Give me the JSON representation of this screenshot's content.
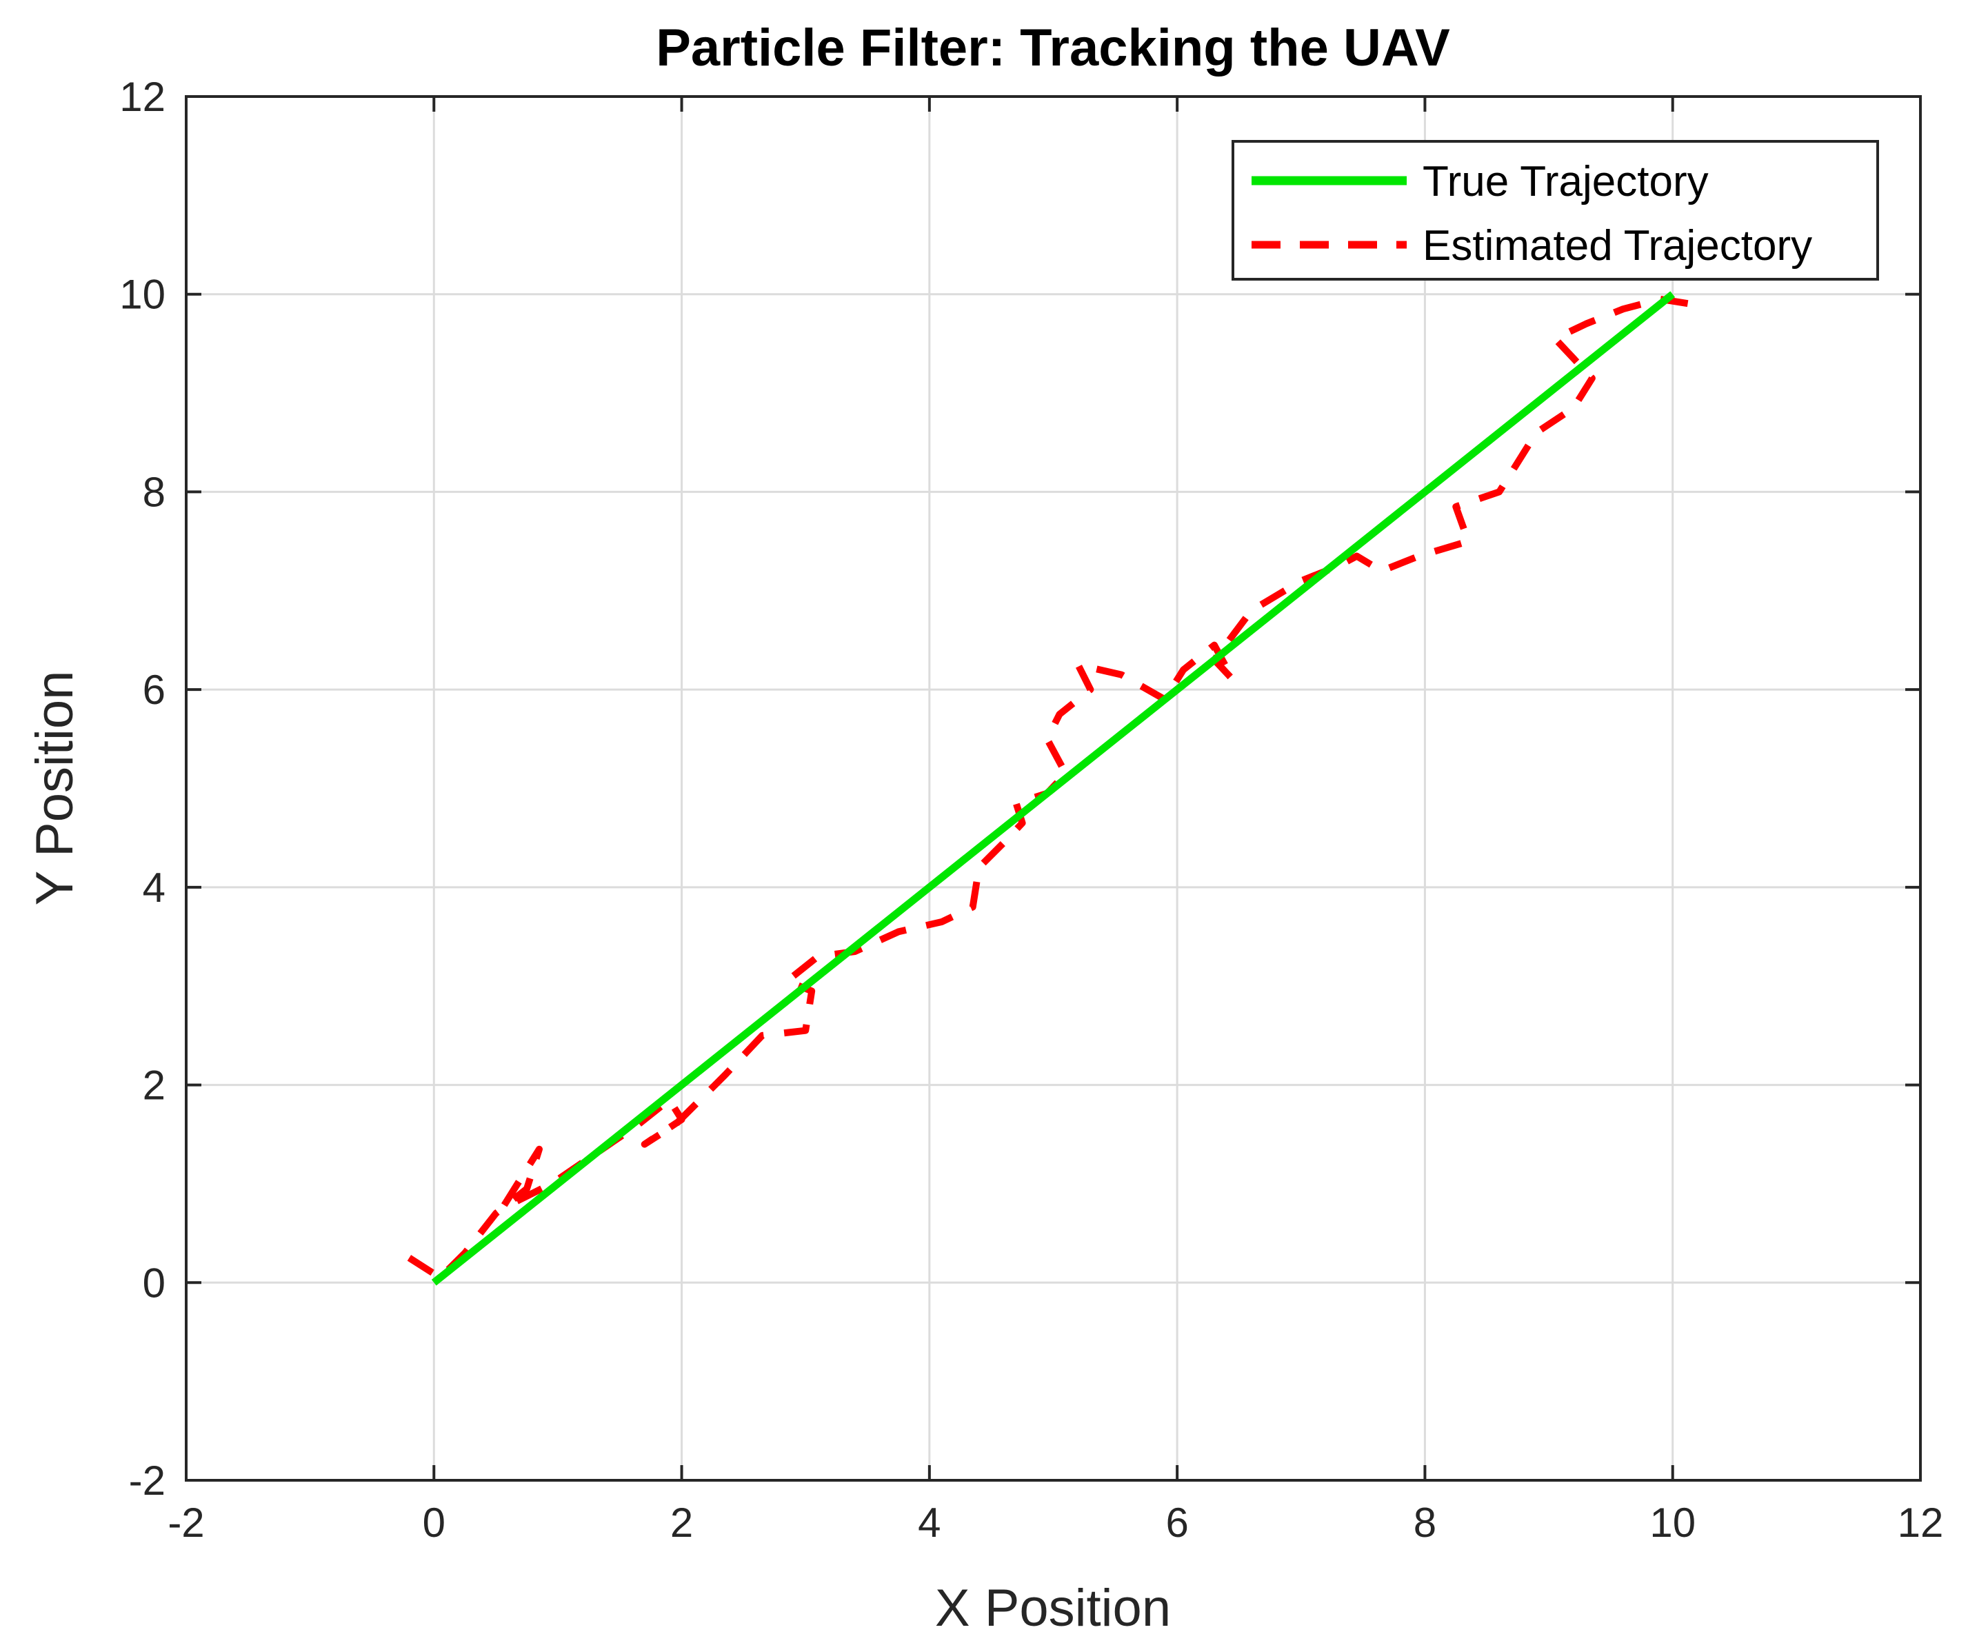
{
  "chart_data": {
    "type": "line",
    "title": "Particle Filter: Tracking the UAV",
    "xlabel": "X Position",
    "ylabel": "Y Position",
    "xlim": [
      -2,
      12
    ],
    "ylim": [
      -2,
      12
    ],
    "xticks": [
      "-2",
      "0",
      "2",
      "4",
      "6",
      "8",
      "10",
      "12"
    ],
    "yticks": [
      "-2",
      "0",
      "2",
      "4",
      "6",
      "8",
      "10",
      "12"
    ],
    "grid": true,
    "legend_position": "top-right",
    "series": [
      {
        "name": "True Trajectory",
        "color": "#00e600",
        "style": "solid",
        "x": [
          0,
          10
        ],
        "y": [
          0,
          10
        ]
      },
      {
        "name": "Estimated Trajectory",
        "color": "#ff0000",
        "style": "dashed",
        "x": [
          -0.2,
          0.05,
          0.25,
          0.5,
          0.75,
          0.85,
          0.55,
          0.95,
          1.3,
          1.65,
          1.9,
          2.0,
          1.7,
          1.95,
          2.35,
          2.65,
          3.0,
          3.05,
          2.85,
          3.1,
          3.4,
          3.75,
          4.1,
          4.35,
          4.4,
          4.6,
          4.75,
          4.7,
          4.95,
          5.1,
          4.95,
          5.05,
          5.3,
          5.2,
          5.55,
          5.9,
          6.05,
          6.3,
          6.45,
          6.3,
          6.6,
          7.0,
          7.3,
          7.45,
          7.65,
          7.95,
          8.35,
          8.25,
          8.6,
          8.75,
          8.9,
          9.2,
          9.35,
          9.05,
          9.3,
          9.6,
          9.9,
          10.15,
          10.2
        ],
        "y": [
          0.25,
          0.05,
          0.3,
          0.7,
          0.95,
          1.35,
          0.75,
          1.0,
          1.3,
          1.6,
          1.85,
          1.65,
          1.4,
          1.6,
          2.1,
          2.5,
          2.55,
          2.95,
          3.05,
          3.3,
          3.35,
          3.55,
          3.65,
          3.8,
          4.2,
          4.45,
          4.65,
          4.85,
          4.95,
          5.15,
          5.5,
          5.75,
          6.0,
          6.25,
          6.15,
          5.9,
          6.2,
          6.45,
          6.1,
          6.3,
          6.8,
          7.1,
          7.25,
          7.35,
          7.2,
          7.35,
          7.5,
          7.85,
          8.0,
          8.3,
          8.6,
          8.85,
          9.15,
          9.55,
          9.7,
          9.85,
          9.95,
          9.9,
          10.05
        ]
      }
    ]
  }
}
